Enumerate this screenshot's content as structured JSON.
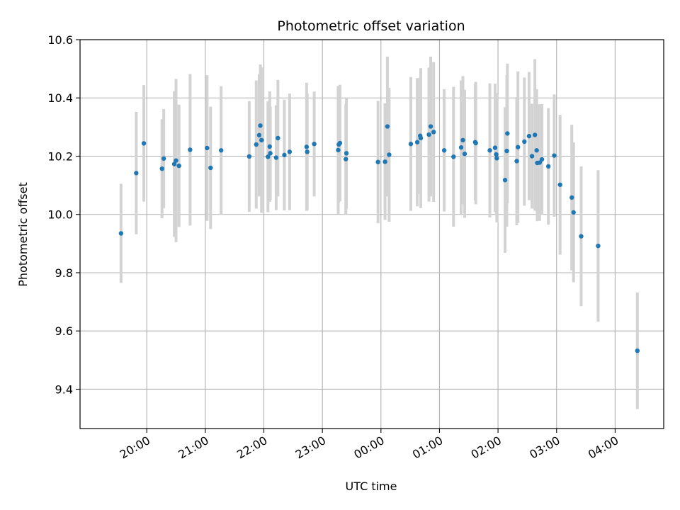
{
  "chart_data": {
    "type": "scatter",
    "title": "Photometric offset variation",
    "xlabel": "UTC time",
    "ylabel": "Photometric offset",
    "xlim_hours": [
      18.86,
      28.83
    ],
    "ylim": [
      9.265,
      10.6
    ],
    "grid": true,
    "x_tick_values": [
      20,
      21,
      22,
      23,
      24,
      25,
      26,
      27,
      28
    ],
    "x_tick_labels": [
      "20:00",
      "21:00",
      "22:00",
      "23:00",
      "00:00",
      "01:00",
      "02:00",
      "03:00",
      "04:00"
    ],
    "y_tick_values": [
      9.4,
      9.6,
      9.8,
      10.0,
      10.2,
      10.4,
      10.6
    ],
    "y_tick_labels": [
      "9.4",
      "9.6",
      "9.8",
      "10.0",
      "10.2",
      "10.4",
      "10.6"
    ],
    "colors": {
      "point": "#1f77b4",
      "errorbar": "#d3d3d3",
      "grid": "#b0b0b0"
    },
    "series": [
      {
        "name": "Photometric offset",
        "x_hours": [
          19.56,
          19.82,
          19.95,
          20.26,
          20.29,
          20.47,
          20.5,
          20.55,
          20.74,
          21.03,
          21.09,
          21.27,
          21.75,
          21.87,
          21.92,
          21.94,
          21.96,
          22.07,
          22.1,
          22.11,
          22.21,
          22.24,
          22.35,
          22.44,
          22.73,
          22.74,
          22.86,
          23.27,
          23.28,
          23.3,
          23.4,
          23.41,
          23.95,
          24.07,
          24.11,
          24.14,
          24.51,
          24.62,
          24.67,
          24.68,
          24.82,
          24.85,
          24.9,
          25.08,
          25.24,
          25.37,
          25.4,
          25.43,
          25.61,
          25.62,
          25.86,
          25.95,
          25.97,
          25.98,
          26.12,
          26.15,
          26.16,
          26.32,
          26.34,
          26.45,
          26.53,
          26.58,
          26.63,
          26.66,
          26.67,
          26.71,
          26.75,
          26.86,
          26.96,
          27.06,
          27.26,
          27.29,
          27.42,
          27.71,
          28.38
        ],
        "y": [
          9.935,
          10.142,
          10.244,
          10.157,
          10.192,
          10.173,
          10.185,
          10.167,
          10.222,
          10.228,
          10.16,
          10.22,
          10.199,
          10.24,
          10.272,
          10.305,
          10.255,
          10.198,
          10.233,
          10.21,
          10.195,
          10.262,
          10.204,
          10.215,
          10.232,
          10.215,
          10.242,
          10.221,
          10.24,
          10.245,
          10.19,
          10.21,
          10.18,
          10.181,
          10.302,
          10.205,
          10.242,
          10.248,
          10.27,
          10.262,
          10.274,
          10.302,
          10.283,
          10.22,
          10.198,
          10.23,
          10.255,
          10.208,
          10.248,
          10.245,
          10.22,
          10.229,
          10.206,
          10.193,
          10.118,
          10.218,
          10.278,
          10.183,
          10.231,
          10.25,
          10.269,
          10.2,
          10.273,
          10.22,
          10.177,
          10.178,
          10.189,
          10.165,
          10.202,
          10.102,
          10.058,
          10.007,
          9.925,
          9.892,
          9.532
        ],
        "yerr": [
          0.17,
          0.21,
          0.2,
          0.17,
          0.17,
          0.25,
          0.28,
          0.21,
          0.26,
          0.25,
          0.21,
          0.22,
          0.19,
          0.22,
          0.21,
          0.21,
          0.25,
          0.19,
          0.19,
          0.16,
          0.18,
          0.2,
          0.19,
          0.2,
          0.22,
          0.2,
          0.18,
          0.22,
          0.2,
          0.2,
          0.19,
          0.19,
          0.21,
          0.2,
          0.24,
          0.23,
          0.23,
          0.22,
          0.2,
          0.24,
          0.23,
          0.24,
          0.24,
          0.21,
          0.24,
          0.23,
          0.22,
          0.22,
          0.2,
          0.21,
          0.23,
          0.22,
          0.21,
          0.22,
          0.25,
          0.26,
          0.24,
          0.22,
          0.26,
          0.22,
          0.22,
          0.18,
          0.26,
          0.21,
          0.2,
          0.2,
          0.19,
          0.2,
          0.21,
          0.24,
          0.25,
          0.24,
          0.24,
          0.26,
          0.2
        ]
      }
    ]
  }
}
